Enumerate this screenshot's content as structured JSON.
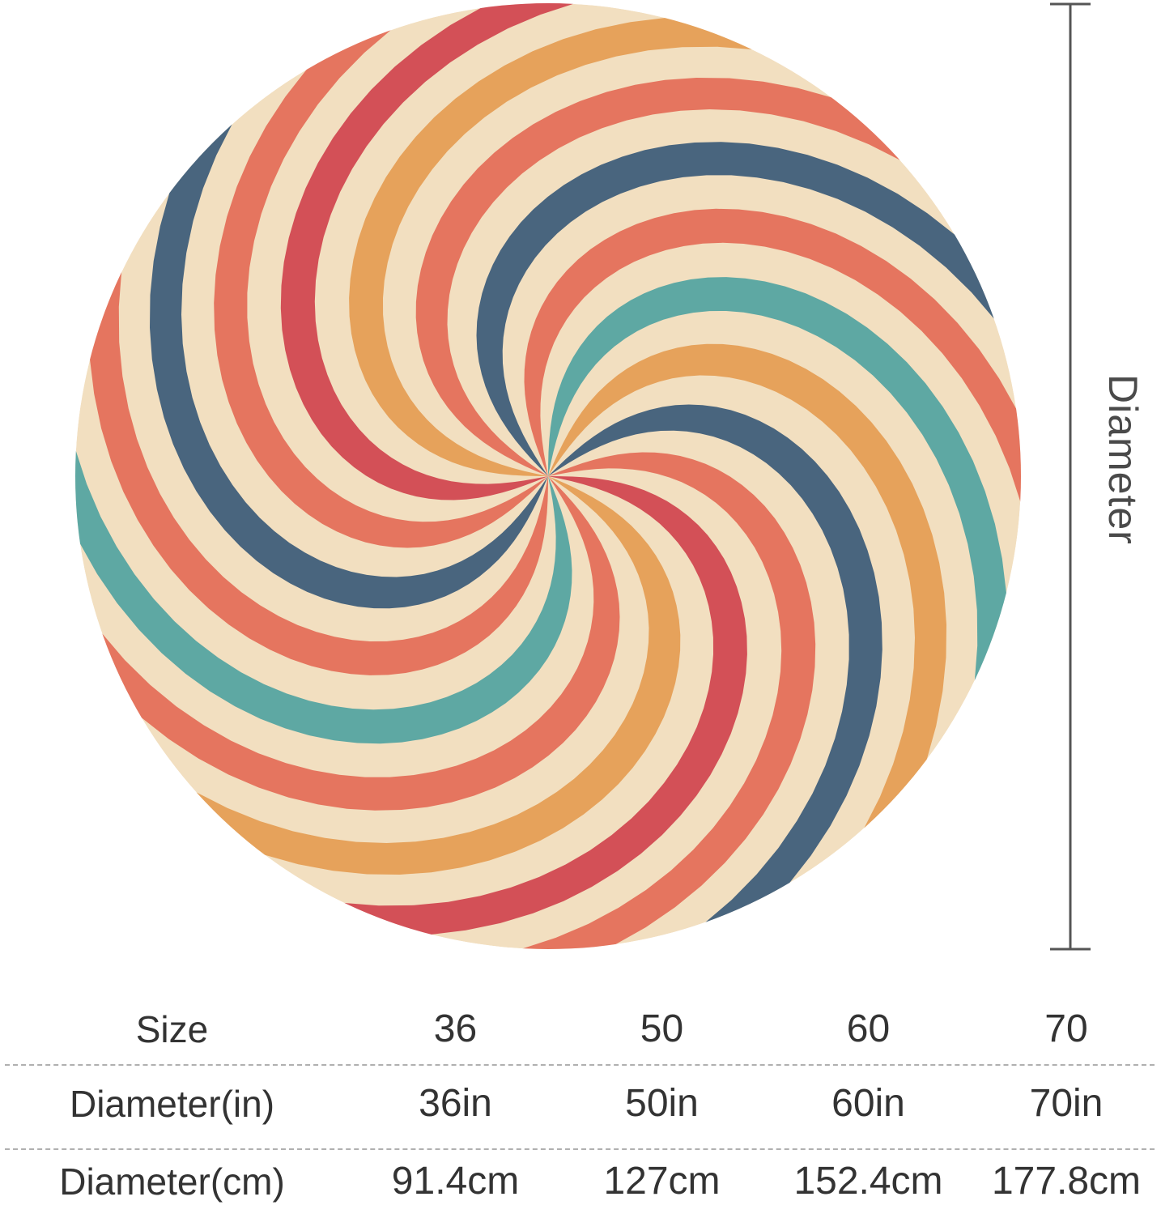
{
  "diagram": {
    "dimension_label": "Diameter",
    "colors": {
      "cream": "#f2dfc0",
      "red": "#d35057",
      "coral": "#e5755f",
      "orange": "#e6a25b",
      "teal": "#5ea8a3",
      "navy": "#49657e",
      "line": "#555555"
    }
  },
  "size_table": {
    "header": "Size",
    "sizes": [
      "36",
      "50",
      "60",
      "70"
    ],
    "rows": [
      {
        "label": "Diameter(in)",
        "values": [
          "36in",
          "50in",
          "60in",
          "70in"
        ]
      },
      {
        "label": "Diameter(cm)",
        "values": [
          "91.4cm",
          "127cm",
          "152.4cm",
          "177.8cm"
        ]
      }
    ]
  }
}
